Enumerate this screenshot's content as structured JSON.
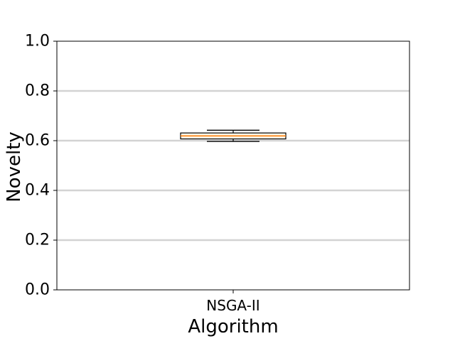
{
  "chart_data": {
    "type": "box",
    "xlabel": "Algorithm",
    "ylabel": "Novelty",
    "ylim": [
      0.0,
      1.0
    ],
    "yticks": [
      "0.0",
      "0.2",
      "0.4",
      "0.6",
      "0.8",
      "1.0"
    ],
    "grid": "horizontal",
    "categories": [
      "NSGA-II"
    ],
    "boxes": [
      {
        "label": "NSGA-II",
        "whisker_low": 0.597,
        "q1": 0.607,
        "median": 0.619,
        "q3": 0.631,
        "whisker_high": 0.642
      }
    ],
    "colors": {
      "grid": "#d3d3d3",
      "box_edge": "#000000",
      "box_fill": "#fffbe9",
      "median": "#ff7f0e",
      "whisker": "#000000"
    }
  }
}
